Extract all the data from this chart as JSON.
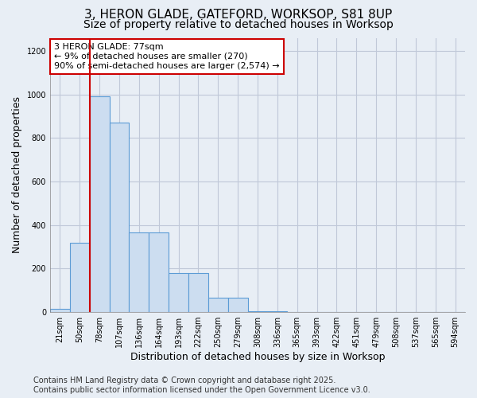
{
  "title_line1": "3, HERON GLADE, GATEFORD, WORKSOP, S81 8UP",
  "title_line2": "Size of property relative to detached houses in Worksop",
  "xlabel": "Distribution of detached houses by size in Worksop",
  "ylabel": "Number of detached properties",
  "categories": [
    "21sqm",
    "50sqm",
    "78sqm",
    "107sqm",
    "136sqm",
    "164sqm",
    "193sqm",
    "222sqm",
    "250sqm",
    "279sqm",
    "308sqm",
    "336sqm",
    "365sqm",
    "393sqm",
    "422sqm",
    "451sqm",
    "479sqm",
    "508sqm",
    "537sqm",
    "565sqm",
    "594sqm"
  ],
  "values": [
    15,
    320,
    990,
    870,
    365,
    365,
    180,
    180,
    65,
    65,
    5,
    5,
    2,
    2,
    2,
    2,
    2,
    2,
    2,
    2,
    2
  ],
  "bar_color": "#ccddf0",
  "bar_edge_color": "#5b9bd5",
  "bar_edge_width": 0.8,
  "grid_color": "#c0c8d8",
  "background_color": "#e8eef5",
  "red_line_x": 1.5,
  "red_line_color": "#cc0000",
  "annotation_text": "3 HERON GLADE: 77sqm\n← 9% of detached houses are smaller (270)\n90% of semi-detached houses are larger (2,574) →",
  "annotation_box_color": "#ffffff",
  "annotation_box_edge_color": "#cc0000",
  "ylim": [
    0,
    1260
  ],
  "yticks": [
    0,
    200,
    400,
    600,
    800,
    1000,
    1200
  ],
  "footer_line1": "Contains HM Land Registry data © Crown copyright and database right 2025.",
  "footer_line2": "Contains public sector information licensed under the Open Government Licence v3.0.",
  "title_fontsize": 11,
  "subtitle_fontsize": 10,
  "axis_label_fontsize": 9,
  "tick_fontsize": 7,
  "annotation_fontsize": 8,
  "footer_fontsize": 7
}
